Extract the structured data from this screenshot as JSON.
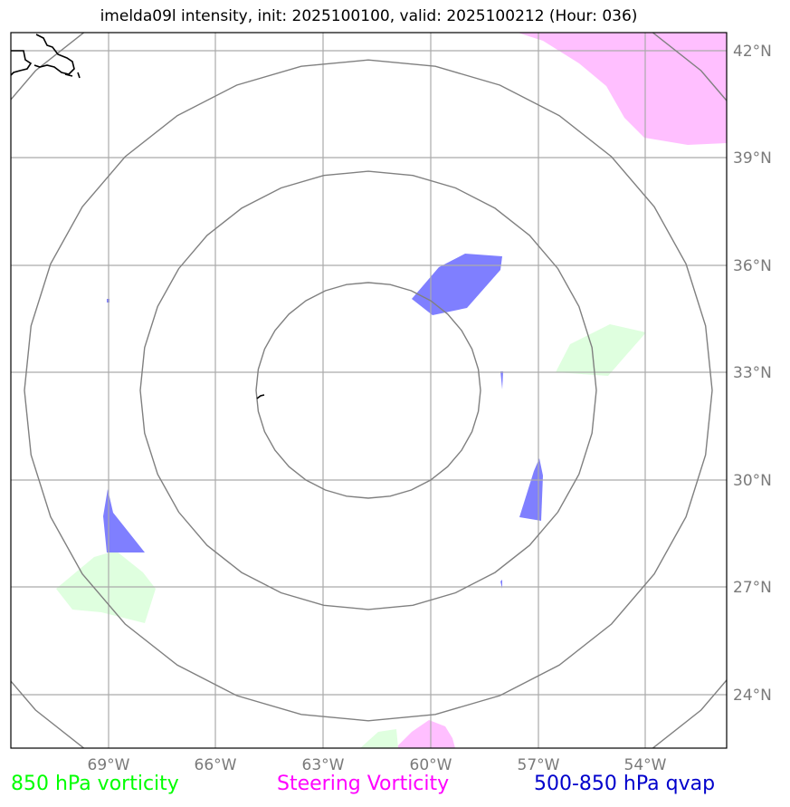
{
  "title": "imelda09l intensity, init: 2025100100, valid: 2025100212 (Hour: 036)",
  "map": {
    "lon_ticks": [
      "69°W",
      "66°W",
      "63°W",
      "60°W",
      "57°W",
      "54°W"
    ],
    "lat_ticks": [
      "42°N",
      "39°N",
      "36°N",
      "33°N",
      "30°N",
      "27°N",
      "24°N"
    ],
    "range_rings_count": 4
  },
  "legend": {
    "vort850": {
      "label": "850 hPa vorticity",
      "color": "#00ff00"
    },
    "steering": {
      "label": "Steering Vorticity",
      "color": "#ff00ff"
    },
    "qvap": {
      "label": "500-850 hPa qvap",
      "color": "#0000cc"
    }
  },
  "colors": {
    "vort850_fill": "#dfffdf",
    "steering_fill": "#ffbfff",
    "qvap_fill": "#7f7fff",
    "grid": "#aaaaaa",
    "rings": "#808080",
    "coast": "#000000"
  }
}
